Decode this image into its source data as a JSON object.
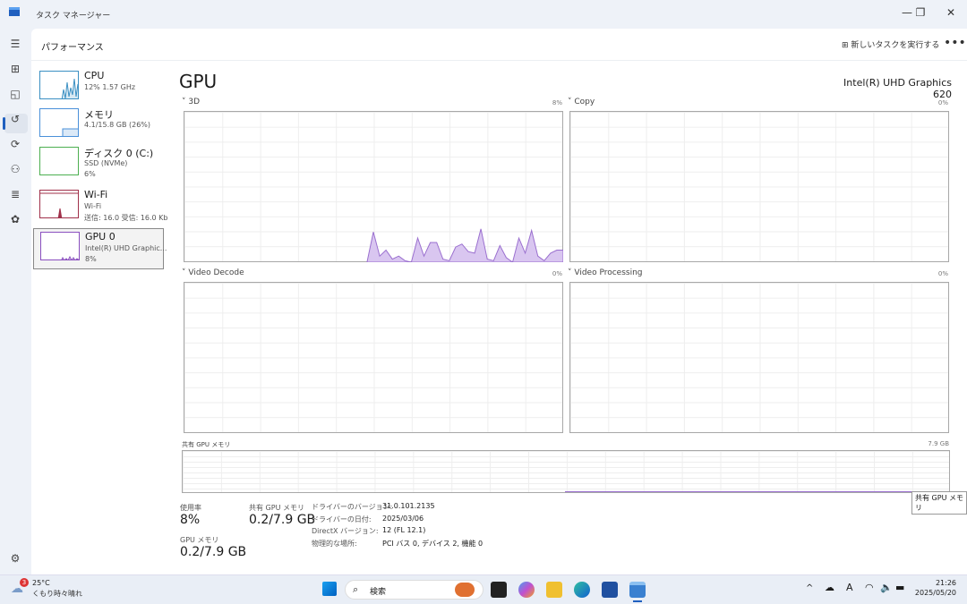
{
  "window": {
    "title": "タスク マネージャー",
    "minimize": "—",
    "maximize": "❐",
    "close": "✕"
  },
  "header": {
    "title": "パフォーマンス",
    "new_task": "新しいタスクを実行する",
    "more": "•••"
  },
  "nav": [
    "menu-icon",
    "processes-icon",
    "performance-icon",
    "app-history-icon",
    "startup-icon",
    "users-icon",
    "details-icon",
    "services-icon",
    "settings-icon"
  ],
  "devices": [
    {
      "name": "CPU",
      "line1": "12% 1.57 GHz",
      "line2": "",
      "color": "#3a8fc2"
    },
    {
      "name": "メモリ",
      "line1": "4.1/15.8 GB (26%)",
      "line2": "",
      "color": "#4a90d9"
    },
    {
      "name": "ディスク 0 (C:)",
      "line1": "SSD (NVMe)",
      "line2": "6%",
      "color": "#4caf50"
    },
    {
      "name": "Wi-Fi",
      "line1": "Wi-Fi",
      "line2": "送信: 16.0 受信: 16.0 Kb",
      "color": "#a0304a"
    },
    {
      "name": "GPU 0",
      "line1": "Intel(R) UHD Graphic...",
      "line2": "8%",
      "color": "#8a4fbf",
      "selected": true
    }
  ],
  "gpu": {
    "title": "GPU",
    "model": "Intel(R) UHD Graphics 620",
    "engines": [
      {
        "label": "3D",
        "value": "8%",
        "samples": [
          0,
          0,
          0,
          0,
          0,
          0,
          0,
          0,
          0,
          0,
          0,
          0,
          0,
          0,
          0,
          0,
          0,
          0,
          0,
          0,
          0,
          0,
          0,
          0,
          0,
          0,
          0,
          0,
          0,
          0,
          20,
          4,
          8,
          2,
          4,
          1,
          0,
          16,
          4,
          13,
          13,
          2,
          1,
          10,
          12,
          7,
          6,
          22,
          2,
          1,
          11,
          3,
          0,
          16,
          6,
          21,
          4,
          1,
          6,
          8,
          8
        ]
      },
      {
        "label": "Copy",
        "value": "0%"
      },
      {
        "label": "Video Decode",
        "value": "0%"
      },
      {
        "label": "Video Processing",
        "value": "0%"
      }
    ],
    "shared_memory_graph": {
      "label": "共有 GPU メモリ",
      "max": "7.9 GB",
      "tooltip": "共有 GPU メモリ",
      "used_fraction": 0.025
    },
    "stats": {
      "utilization_label": "使用率",
      "utilization": "8%",
      "shared_label": "共有 GPU メモリ",
      "shared": "0.2/7.9 GB",
      "gpu_mem_label": "GPU メモリ",
      "gpu_mem": "0.2/7.9 GB"
    },
    "info": [
      {
        "k": "ドライバーのバージョン:",
        "v": "31.0.101.2135"
      },
      {
        "k": "ドライバーの日付:",
        "v": "2025/03/06"
      },
      {
        "k": "DirectX バージョン:",
        "v": "12 (FL 12.1)"
      },
      {
        "k": "物理的な場所:",
        "v": "PCI バス 0, デバイス 2, 機能 0"
      }
    ]
  },
  "taskbar": {
    "weather_badge": "3",
    "temp": "25°C",
    "weather": "くもり時々晴れ",
    "search": "検索",
    "time": "21:26",
    "date": "2025/05/20",
    "tray_ime": "A",
    "chevron": "^"
  }
}
